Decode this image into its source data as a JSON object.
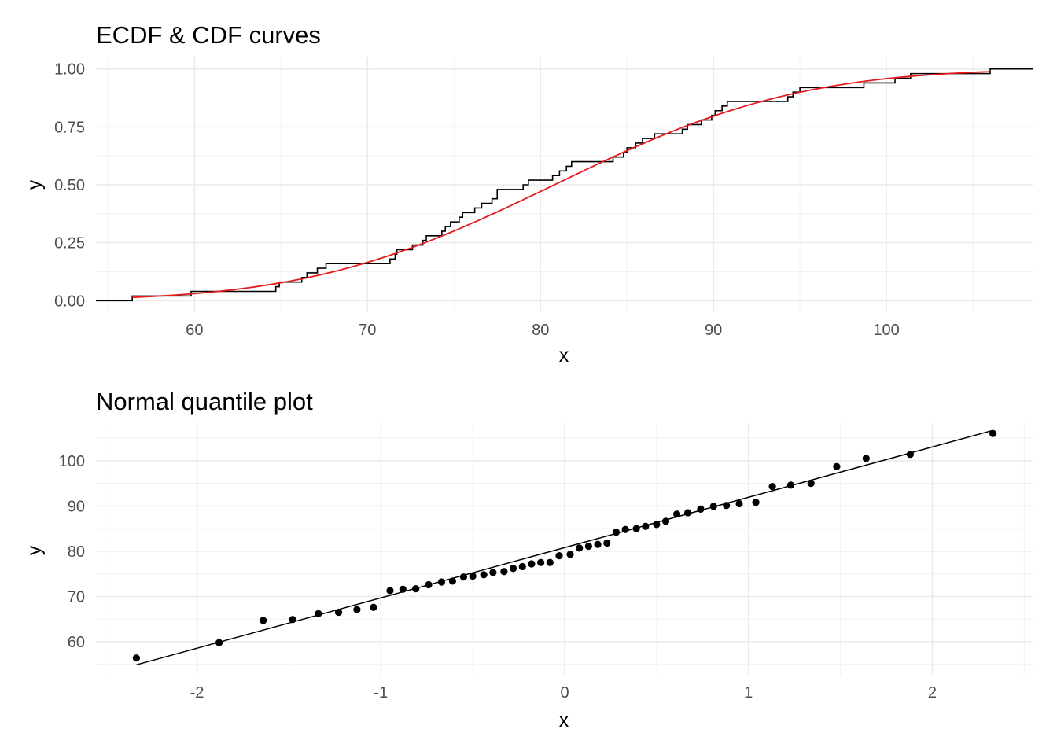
{
  "chart_data": [
    {
      "type": "line",
      "title": "ECDF & CDF curves",
      "xlabel": "x",
      "ylabel": "y",
      "xlim": [
        54.3,
        108.5
      ],
      "ylim": [
        -0.05,
        1.05
      ],
      "xticks": [
        60,
        70,
        80,
        90,
        100
      ],
      "xtick_labels": [
        "60",
        "70",
        "80",
        "90",
        "100"
      ],
      "yticks": [
        0,
        0.25,
        0.5,
        0.75,
        1
      ],
      "ytick_labels": [
        "0.00",
        "0.25",
        "0.50",
        "0.75",
        "1.00"
      ],
      "grid": true,
      "series": [
        {
          "kind": "ecdf-step",
          "color": "#000000",
          "sample": [
            56.4,
            59.8,
            64.7,
            64.9,
            66.2,
            66.5,
            67.1,
            67.6,
            71.3,
            71.6,
            71.7,
            72.6,
            73.2,
            73.4,
            74.3,
            74.5,
            74.8,
            75.3,
            75.5,
            76.2,
            76.6,
            77.2,
            77.5,
            77.5,
            79.0,
            79.3,
            80.7,
            81.1,
            81.5,
            81.8,
            84.2,
            84.8,
            85.0,
            85.5,
            85.9,
            86.6,
            88.2,
            88.5,
            89.3,
            89.9,
            90.1,
            90.5,
            90.8,
            94.3,
            94.6,
            95.0,
            98.7,
            100.5,
            101.4,
            106.0
          ],
          "x_start": 54.3,
          "x_end": 108.5
        },
        {
          "kind": "normal-cdf",
          "color": "#e41a1c",
          "mean": 80.8,
          "sd": 11.1,
          "x_range": [
            56.4,
            106.0
          ]
        }
      ]
    },
    {
      "type": "scatter",
      "title": "Normal quantile plot",
      "xlabel": "x",
      "ylabel": "y",
      "xlim": [
        -2.55,
        2.55
      ],
      "ylim": [
        52.7,
        108.3
      ],
      "xticks": [
        -2,
        -1,
        0,
        1,
        2
      ],
      "xtick_labels": [
        "-2",
        "-1",
        "0",
        "1",
        "2"
      ],
      "yticks": [
        60,
        70,
        80,
        90,
        100
      ],
      "ytick_labels": [
        "60",
        "70",
        "80",
        "90",
        "100"
      ],
      "grid": true,
      "points": {
        "color": "#000000",
        "x": [
          -2.33,
          -1.88,
          -1.64,
          -1.48,
          -1.34,
          -1.23,
          -1.13,
          -1.04,
          -0.95,
          -0.88,
          -0.81,
          -0.74,
          -0.67,
          -0.61,
          -0.55,
          -0.5,
          -0.44,
          -0.39,
          -0.33,
          -0.28,
          -0.23,
          -0.18,
          -0.13,
          -0.08,
          -0.03,
          0.03,
          0.08,
          0.13,
          0.18,
          0.23,
          0.28,
          0.33,
          0.39,
          0.44,
          0.5,
          0.55,
          0.61,
          0.67,
          0.74,
          0.81,
          0.88,
          0.95,
          1.04,
          1.13,
          1.23,
          1.34,
          1.48,
          1.64,
          1.88,
          2.33
        ],
        "y": [
          56.4,
          59.8,
          64.7,
          64.9,
          66.2,
          66.5,
          67.1,
          67.6,
          71.3,
          71.6,
          71.7,
          72.6,
          73.2,
          73.4,
          74.3,
          74.5,
          74.8,
          75.3,
          75.5,
          76.2,
          76.6,
          77.2,
          77.5,
          77.5,
          79.0,
          79.3,
          80.7,
          81.1,
          81.5,
          81.8,
          84.2,
          84.8,
          85.0,
          85.5,
          85.9,
          86.6,
          88.2,
          88.5,
          89.3,
          89.9,
          90.1,
          90.5,
          90.8,
          94.3,
          94.6,
          95.0,
          98.7,
          100.5,
          101.4,
          106.0
        ]
      },
      "reference_line": {
        "color": "#000000",
        "x": [
          -2.33,
          2.33
        ],
        "y": [
          54.9,
          106.7
        ]
      }
    }
  ]
}
